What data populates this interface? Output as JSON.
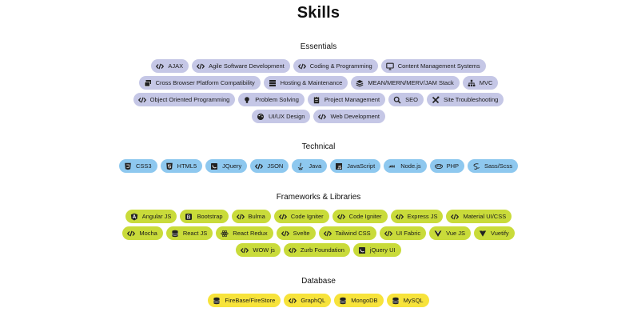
{
  "title": "Skills",
  "sections": {
    "essentials": {
      "title": "Essentials",
      "rows": [
        [
          {
            "label": "AJAX",
            "icon": "code-icon"
          },
          {
            "label": "Agile Software Development",
            "icon": "code-icon"
          },
          {
            "label": "Coding & Programming",
            "icon": "code-icon"
          },
          {
            "label": "Content Management Systems",
            "icon": "monitor-icon"
          }
        ],
        [
          {
            "label": "Cross Browser Platform Compatibility",
            "icon": "windows-icon"
          },
          {
            "label": "Hosting & Maintenance",
            "icon": "server-icon"
          },
          {
            "label": "MEAN/MERN/MERV/JAM Stack",
            "icon": "layers-icon"
          },
          {
            "label": "MVC",
            "icon": "sitemap-icon"
          }
        ],
        [
          {
            "label": "Object Oriented Programming",
            "icon": "code-icon"
          },
          {
            "label": "Problem Solving",
            "icon": "lightbulb-icon"
          },
          {
            "label": "Project Management",
            "icon": "clipboard-icon"
          },
          {
            "label": "SEO",
            "icon": "search-icon"
          },
          {
            "label": "Site Troubleshooting",
            "icon": "tools-icon"
          }
        ],
        [
          {
            "label": "UI/UX Design",
            "icon": "palette-icon"
          },
          {
            "label": "Web Development",
            "icon": "code-icon"
          }
        ]
      ]
    },
    "technical": {
      "title": "Technical",
      "rows": [
        [
          {
            "label": "CSS3",
            "icon": "css3-icon"
          },
          {
            "label": "HTML5",
            "icon": "html5-icon"
          },
          {
            "label": "JQuery",
            "icon": "jquery-icon"
          },
          {
            "label": "JSON",
            "icon": "code-icon"
          },
          {
            "label": "Java",
            "icon": "java-icon"
          },
          {
            "label": "JavaScript",
            "icon": "javascript-icon"
          },
          {
            "label": "Node.js",
            "icon": "nodejs-icon"
          },
          {
            "label": "PHP",
            "icon": "php-icon"
          },
          {
            "label": "Sass/Scss",
            "icon": "sass-icon"
          }
        ]
      ]
    },
    "frameworks": {
      "title": "Frameworks & Libraries",
      "rows": [
        [
          {
            "label": "Angular JS",
            "icon": "angular-icon"
          },
          {
            "label": "Bootstrap",
            "icon": "bootstrap-icon"
          },
          {
            "label": "Bulma",
            "icon": "code-icon"
          },
          {
            "label": "Code Igniter",
            "icon": "code-icon"
          },
          {
            "label": "Code Igniter",
            "icon": "code-icon"
          },
          {
            "label": "Express JS",
            "icon": "code-icon"
          },
          {
            "label": "Material UI/CSS",
            "icon": "code-icon"
          }
        ],
        [
          {
            "label": "Mocha",
            "icon": "code-icon"
          },
          {
            "label": "React JS",
            "icon": "database-icon"
          },
          {
            "label": "React Redux",
            "icon": "react-icon"
          },
          {
            "label": "Svelte",
            "icon": "code-icon"
          },
          {
            "label": "Tailwind CSS",
            "icon": "code-icon"
          },
          {
            "label": "UI Fabric",
            "icon": "code-icon"
          },
          {
            "label": "Vue JS",
            "icon": "vue-icon"
          },
          {
            "label": "Vuetify",
            "icon": "vuetify-icon"
          }
        ],
        [
          {
            "label": "WOW js",
            "icon": "code-icon"
          },
          {
            "label": "Zurb Foundation",
            "icon": "code-icon"
          },
          {
            "label": "jQuery UI",
            "icon": "jquery-icon"
          }
        ]
      ]
    },
    "database": {
      "title": "Database",
      "rows": [
        [
          {
            "label": "FireBase/FireStore",
            "icon": "database-icon"
          },
          {
            "label": "GraphQL",
            "icon": "code-icon"
          },
          {
            "label": "MongoDB",
            "icon": "database-icon"
          },
          {
            "label": "MySQL",
            "icon": "database-icon"
          }
        ]
      ]
    }
  },
  "colors": {
    "essentials": "#c5c7e6",
    "technical": "#8ec8ef",
    "frameworks": "#c9db3a",
    "database": "#f7e33b"
  }
}
